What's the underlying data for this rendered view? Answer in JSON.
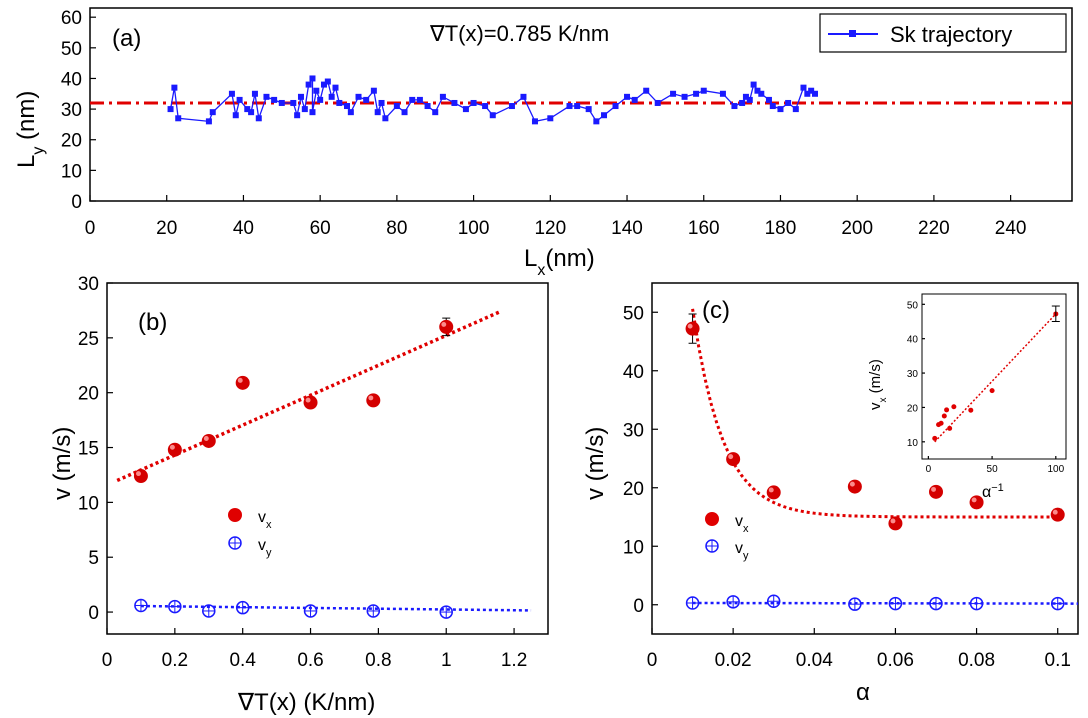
{
  "chart_data": [
    {
      "panel": "a",
      "type": "line",
      "panel_label": "(a)",
      "annotation": "∇T(x)=0.785 K/nm",
      "xlabel": "L",
      "xlabel_sub": "x",
      "xlabel_unit": "(nm)",
      "ylabel": "L",
      "ylabel_sub": "y",
      "ylabel_unit": " (nm)",
      "xlim": [
        0,
        256
      ],
      "ylim": [
        0,
        63
      ],
      "xticks": [
        0,
        20,
        40,
        60,
        80,
        100,
        120,
        140,
        160,
        180,
        200,
        220,
        240
      ],
      "yticks": [
        0,
        10,
        20,
        30,
        40,
        50,
        60
      ],
      "legend": "Sk  trajectory",
      "reference_line_y": 32,
      "colors": {
        "series": "#1a1aff",
        "reference": "#e00000"
      },
      "series": [
        {
          "name": "Sk  trajectory",
          "points": [
            [
              21,
              30
            ],
            [
              22,
              37
            ],
            [
              23,
              27
            ],
            [
              31,
              26
            ],
            [
              32,
              29
            ],
            [
              37,
              35
            ],
            [
              38,
              28
            ],
            [
              39,
              33
            ],
            [
              41,
              30
            ],
            [
              42,
              29
            ],
            [
              43,
              35
            ],
            [
              44,
              27
            ],
            [
              46,
              34
            ],
            [
              48,
              33
            ],
            [
              50,
              32
            ],
            [
              53,
              32
            ],
            [
              54,
              28
            ],
            [
              55,
              34
            ],
            [
              56,
              30
            ],
            [
              57,
              38
            ],
            [
              58,
              40
            ],
            [
              58,
              29
            ],
            [
              59,
              36
            ],
            [
              60,
              33
            ],
            [
              61,
              38
            ],
            [
              62,
              39
            ],
            [
              63,
              34
            ],
            [
              64,
              37
            ],
            [
              65,
              32
            ],
            [
              67,
              31
            ],
            [
              68,
              29
            ],
            [
              70,
              34
            ],
            [
              72,
              33
            ],
            [
              74,
              36
            ],
            [
              75,
              29
            ],
            [
              76,
              32
            ],
            [
              77,
              27
            ],
            [
              80,
              31
            ],
            [
              82,
              29
            ],
            [
              84,
              33
            ],
            [
              86,
              33
            ],
            [
              88,
              31
            ],
            [
              90,
              29
            ],
            [
              92,
              34
            ],
            [
              95,
              32
            ],
            [
              98,
              30
            ],
            [
              100,
              32
            ],
            [
              103,
              31
            ],
            [
              105,
              28
            ],
            [
              110,
              31
            ],
            [
              113,
              34
            ],
            [
              116,
              26
            ],
            [
              120,
              27
            ],
            [
              125,
              31
            ],
            [
              127,
              31
            ],
            [
              130,
              30
            ],
            [
              132,
              26
            ],
            [
              134,
              28
            ],
            [
              137,
              31
            ],
            [
              140,
              34
            ],
            [
              142,
              33
            ],
            [
              145,
              36
            ],
            [
              148,
              32
            ],
            [
              152,
              35
            ],
            [
              155,
              34
            ],
            [
              158,
              35
            ],
            [
              160,
              36
            ],
            [
              165,
              35
            ],
            [
              168,
              31
            ],
            [
              170,
              32
            ],
            [
              171,
              34
            ],
            [
              172,
              33
            ],
            [
              173,
              38
            ],
            [
              174,
              36
            ],
            [
              175,
              35
            ],
            [
              177,
              33
            ],
            [
              178,
              31
            ],
            [
              180,
              30
            ],
            [
              182,
              32
            ],
            [
              184,
              30
            ],
            [
              186,
              37
            ],
            [
              187,
              35
            ],
            [
              188,
              36
            ],
            [
              189,
              35
            ]
          ]
        }
      ]
    },
    {
      "panel": "b",
      "type": "scatter",
      "panel_label": "(b)",
      "xlabel": "∇T(x) (K/nm)",
      "ylabel": "v (m/s)",
      "xlim": [
        0,
        1.3
      ],
      "ylim": [
        -2,
        30
      ],
      "xticks": [
        0,
        0.2,
        0.4,
        0.6,
        0.8,
        1,
        1.2
      ],
      "xtick_labels": [
        "0",
        "0.2",
        "0.4",
        "0.6",
        "0.8",
        "1",
        "1.2"
      ],
      "yticks": [
        0,
        5,
        10,
        15,
        20,
        25,
        30
      ],
      "colors": {
        "vx": "#e00000",
        "vy": "#1a1aff"
      },
      "legend": [
        {
          "name": "v",
          "sub": "x"
        },
        {
          "name": "v",
          "sub": "y"
        }
      ],
      "series": [
        {
          "name": "vx",
          "x": [
            0.1,
            0.2,
            0.3,
            0.4,
            0.6,
            0.785,
            1.0
          ],
          "values": [
            12.4,
            14.8,
            15.6,
            20.9,
            19.1,
            19.3,
            26.0
          ],
          "errors": [
            0,
            0,
            0,
            0,
            0,
            0,
            0.8
          ]
        },
        {
          "name": "vy",
          "x": [
            0.1,
            0.2,
            0.3,
            0.4,
            0.6,
            0.785,
            1.0
          ],
          "values": [
            0.6,
            0.5,
            0.1,
            0.4,
            0.1,
            0.1,
            0.0
          ]
        }
      ],
      "fits": [
        {
          "name": "vx-fit",
          "x": [
            0.03,
            1.16
          ],
          "values": [
            12.0,
            27.4
          ]
        },
        {
          "name": "vy-fit",
          "x": [
            0.1,
            1.25
          ],
          "values": [
            0.55,
            0.15
          ]
        }
      ]
    },
    {
      "panel": "c",
      "type": "scatter",
      "panel_label": "(c)",
      "xlabel": "α",
      "ylabel": "v (m/s)",
      "xlim": [
        0,
        0.105
      ],
      "ylim": [
        -5,
        55
      ],
      "xticks": [
        0,
        0.02,
        0.04,
        0.06,
        0.08,
        0.1
      ],
      "xtick_labels": [
        "0",
        "0.02",
        "0.04",
        "0.06",
        "0.08",
        "0.1"
      ],
      "yticks": [
        0,
        10,
        20,
        30,
        40,
        50
      ],
      "colors": {
        "vx": "#e00000",
        "vy": "#1a1aff"
      },
      "legend": [
        {
          "name": "v",
          "sub": "x"
        },
        {
          "name": "v",
          "sub": "y"
        }
      ],
      "series": [
        {
          "name": "vx",
          "x": [
            0.01,
            0.02,
            0.03,
            0.05,
            0.06,
            0.07,
            0.08,
            0.1
          ],
          "values": [
            47.2,
            24.9,
            19.2,
            20.2,
            13.9,
            19.3,
            17.5,
            15.4
          ],
          "errors": [
            2.5,
            0.8,
            0.5,
            0.5,
            0.5,
            0.5,
            0.5,
            0.3
          ]
        },
        {
          "name": "vy",
          "x": [
            0.01,
            0.02,
            0.03,
            0.05,
            0.06,
            0.07,
            0.08,
            0.1
          ],
          "values": [
            0.3,
            0.5,
            0.6,
            0.1,
            0.2,
            0.2,
            0.2,
            0.2
          ]
        }
      ],
      "fit": {
        "type": "exp-decay",
        "y0": 15.0,
        "A": 135,
        "tau": 0.0075,
        "x_range": [
          0.01,
          0.1
        ]
      },
      "vy_fit": {
        "x": [
          0.01,
          0.105
        ],
        "values": [
          0.3,
          0.2
        ]
      },
      "inset": {
        "xlabel": "α",
        "xlabel_sup": "−1",
        "ylabel": "v",
        "ylabel_sub": "x",
        "ylabel_unit": " (m/s)",
        "xlim": [
          -5,
          108
        ],
        "ylim": [
          5,
          53
        ],
        "xticks": [
          0,
          50,
          100
        ],
        "yticks": [
          10,
          20,
          30,
          40,
          50
        ],
        "x": [
          10,
          12.5,
          14.3,
          16.7,
          20,
          33.3,
          50,
          100
        ],
        "values": [
          15.4,
          17.5,
          19.3,
          13.9,
          20.2,
          19.2,
          24.9,
          47.2
        ],
        "extra_points": [
          [
            5,
            11.0
          ],
          [
            8,
            15.0
          ]
        ],
        "fit": {
          "x": [
            5,
            100
          ],
          "values": [
            10.0,
            47.2
          ]
        }
      }
    }
  ]
}
